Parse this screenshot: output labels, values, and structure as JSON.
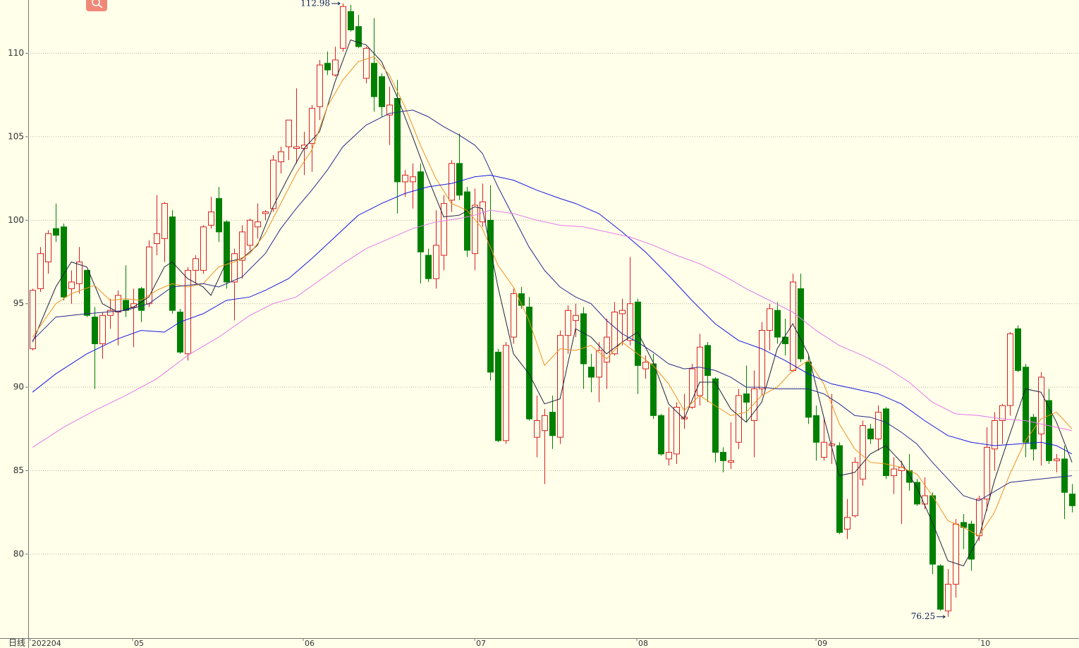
{
  "chart_data": {
    "type": "candlestick",
    "period_label": "日线",
    "xlim": [
      -0.55,
      134.9
    ],
    "xticks": [
      {
        "value": -0.3,
        "label": "202204"
      },
      {
        "value": 12.9,
        "label": "05"
      },
      {
        "value": 34.9,
        "label": "06"
      },
      {
        "value": 57.0,
        "label": "07"
      },
      {
        "value": 77.9,
        "label": "08"
      },
      {
        "value": 101.0,
        "label": "09"
      },
      {
        "value": 122.0,
        "label": "10"
      }
    ],
    "ylim": [
      74.97,
      113.19
    ],
    "yticks": [
      80,
      85,
      90,
      95,
      100,
      105,
      110
    ],
    "grid": true,
    "up_color": "#d82020",
    "down_color": "#008000",
    "open": [
      92.3,
      95.9,
      97.5,
      99.5,
      99.6,
      95.9,
      96.2,
      97.0,
      94.2,
      92.6,
      94.3,
      94.5,
      95.2,
      94.8,
      95.9,
      95.0,
      98.6,
      98.9,
      100.2,
      94.5,
      92.0,
      97.0,
      97.0,
      99.7,
      101.3,
      99.9,
      96.3,
      97.6,
      98.5,
      99.6,
      100.4,
      100.7,
      103.5,
      104.4,
      104.3,
      104.3,
      104.6,
      106.8,
      109.4,
      108.7,
      110.3,
      112.5,
      111.6,
      108.5,
      109.4,
      108.6,
      106.3,
      107.3,
      102.3,
      102.3,
      102.9,
      97.9,
      96.5,
      97.9,
      101.2,
      103.4,
      101.7,
      98.0,
      99.9,
      100.0,
      92.1,
      86.8,
      93.0,
      95.6,
      94.8,
      87.0,
      87.4,
      88.5,
      87.0,
      93.1,
      94.0,
      94.4,
      91.2,
      90.6,
      91.5,
      92.0,
      94.4,
      92.8,
      95.1,
      91.1,
      91.4,
      88.3,
      85.7,
      86.0,
      88.1,
      88.8,
      89.5,
      92.5,
      90.5,
      86.1,
      85.5,
      86.7,
      89.6,
      88.0,
      89.9,
      93.4,
      94.6,
      93.0,
      91.0,
      95.9,
      91.5,
      88.3,
      85.8,
      86.5,
      86.5,
      81.5,
      82.3,
      84.5,
      87.5,
      86.9,
      88.7,
      84.7,
      85.0,
      85.0,
      84.3,
      83.0,
      83.5,
      79.3,
      76.6,
      78.2,
      81.9,
      81.8,
      81.1,
      83.3,
      86.3,
      88.0,
      88.9,
      93.5,
      91.2,
      88.2,
      87.2,
      89.2,
      85.6,
      85.7,
      83.6
    ],
    "high": [
      95.9,
      98.4,
      99.4,
      101.0,
      99.8,
      97.0,
      98.4,
      97.0,
      94.8,
      94.5,
      95.3,
      95.8,
      97.3,
      95.9,
      96.0,
      98.8,
      101.5,
      101.1,
      100.6,
      94.7,
      97.2,
      97.9,
      99.7,
      101.4,
      102.0,
      100.0,
      98.3,
      99.7,
      100.1,
      101.0,
      100.6,
      103.9,
      104.4,
      106.0,
      107.9,
      105.3,
      106.9,
      109.6,
      110.1,
      110.4,
      112.98,
      112.9,
      112.3,
      110.4,
      112.1,
      108.8,
      108.0,
      108.4,
      103.0,
      103.4,
      103.4,
      98.3,
      100.6,
      101.5,
      103.6,
      105.2,
      102.0,
      101.9,
      102.2,
      102.1,
      92.3,
      92.7,
      95.9,
      96.0,
      95.4,
      89.5,
      88.7,
      89.5,
      93.4,
      94.9,
      95.0,
      94.8,
      92.0,
      92.7,
      94.1,
      95.1,
      95.3,
      97.8,
      95.3,
      91.9,
      92.0,
      88.4,
      88.8,
      89.1,
      89.6,
      91.4,
      93.2,
      92.7,
      90.6,
      86.4,
      87.9,
      89.9,
      91.3,
      91.0,
      93.9,
      95.0,
      95.1,
      94.1,
      96.8,
      96.8,
      91.9,
      88.9,
      88.2,
      89.6,
      86.7,
      83.3,
      85.8,
      88.0,
      87.8,
      88.9,
      88.8,
      85.8,
      85.6,
      86.0,
      84.5,
      84.6,
      83.7,
      79.4,
      79.1,
      82.1,
      82.4,
      82.0,
      83.5,
      87.6,
      88.5,
      89.0,
      93.3,
      93.7,
      91.4,
      88.4,
      90.9,
      89.9,
      86.0,
      86.5,
      84.2
    ],
    "low": [
      92.2,
      95.7,
      96.8,
      98.7,
      95.2,
      95.0,
      95.6,
      94.2,
      89.9,
      91.7,
      93.5,
      92.5,
      94.2,
      92.4,
      93.9,
      94.8,
      97.9,
      97.5,
      94.4,
      92.0,
      91.6,
      96.2,
      96.8,
      99.5,
      98.7,
      95.9,
      94.0,
      96.5,
      98.2,
      98.9,
      100.0,
      100.5,
      102.8,
      103.6,
      103.4,
      102.7,
      102.9,
      106.0,
      108.7,
      108.6,
      110.1,
      111.3,
      110.3,
      108.2,
      106.5,
      106.2,
      104.5,
      100.4,
      101.4,
      100.7,
      96.2,
      96.3,
      95.9,
      97.0,
      100.5,
      101.2,
      97.8,
      97.0,
      99.6,
      90.4,
      86.7,
      86.6,
      92.6,
      94.7,
      88.0,
      85.8,
      84.2,
      86.3,
      86.6,
      92.0,
      93.0,
      89.9,
      89.7,
      89.1,
      89.9,
      91.9,
      92.5,
      92.5,
      89.6,
      90.5,
      88.1,
      85.9,
      85.3,
      85.4,
      87.5,
      88.7,
      88.9,
      89.1,
      85.5,
      84.9,
      85.1,
      86.3,
      87.9,
      85.8,
      89.5,
      92.2,
      92.6,
      91.9,
      90.9,
      91.5,
      87.8,
      85.6,
      85.6,
      85.4,
      81.2,
      80.9,
      82.2,
      84.1,
      86.6,
      86.2,
      84.5,
      83.6,
      81.8,
      83.8,
      82.9,
      82.7,
      78.8,
      76.6,
      76.25,
      77.4,
      80.3,
      79.0,
      80.8,
      82.6,
      85.0,
      86.6,
      88.3,
      90.9,
      85.8,
      85.6,
      85.3,
      85.4,
      84.9,
      82.1,
      82.5
    ],
    "close": [
      95.8,
      98.0,
      99.2,
      99.1,
      95.4,
      96.3,
      97.5,
      94.3,
      92.6,
      94.3,
      94.6,
      95.5,
      94.6,
      95.0,
      94.6,
      98.4,
      99.2,
      101.0,
      94.6,
      92.1,
      97.0,
      97.7,
      99.6,
      100.5,
      99.3,
      96.3,
      98.0,
      99.3,
      100.0,
      99.9,
      100.5,
      103.6,
      104.1,
      106.0,
      104.4,
      104.5,
      106.7,
      109.3,
      109.0,
      109.6,
      112.8,
      111.4,
      110.4,
      110.3,
      107.4,
      106.8,
      106.9,
      102.3,
      102.7,
      102.6,
      98.1,
      96.5,
      98.5,
      101.0,
      103.4,
      101.5,
      98.2,
      100.9,
      101.1,
      90.9,
      86.8,
      92.5,
      95.6,
      94.9,
      88.1,
      88.0,
      88.3,
      87.1,
      93.1,
      94.6,
      94.3,
      91.4,
      90.6,
      92.2,
      93.0,
      94.5,
      94.6,
      95.0,
      91.3,
      91.5,
      88.3,
      86.0,
      86.1,
      88.8,
      88.2,
      91.1,
      92.4,
      90.7,
      86.1,
      85.6,
      85.6,
      89.5,
      89.1,
      89.9,
      93.4,
      94.7,
      93.0,
      92.6,
      96.3,
      91.7,
      88.2,
      86.7,
      86.7,
      86.6,
      81.3,
      82.2,
      85.5,
      87.7,
      86.9,
      88.5,
      84.7,
      85.1,
      85.2,
      84.3,
      83.0,
      83.5,
      79.4,
      76.7,
      78.2,
      81.8,
      81.6,
      79.7,
      83.3,
      86.4,
      88.0,
      88.9,
      93.2,
      91.0,
      86.7,
      86.3,
      90.6,
      85.6,
      85.7,
      83.7,
      82.9
    ],
    "lines": [
      {
        "color": "#202040",
        "x": [
          0,
          3,
          5,
          7,
          9,
          11,
          13,
          15,
          17,
          18,
          20,
          22,
          23,
          25,
          27,
          29,
          31,
          33,
          35,
          37,
          39,
          41,
          43,
          45,
          47,
          49,
          51,
          53,
          55,
          57,
          58,
          60,
          62,
          64,
          66,
          68,
          70,
          72,
          74,
          76,
          78,
          80,
          82,
          84,
          86,
          88,
          90,
          92,
          94,
          96,
          98,
          100,
          102,
          104,
          106,
          108,
          110,
          112,
          114,
          116,
          118,
          120,
          122,
          124,
          126,
          128,
          130,
          132,
          134
        ],
        "values": [
          92.7,
          96.0,
          97.5,
          97.2,
          95.0,
          94.5,
          94.8,
          95.4,
          97.2,
          97.5,
          96.5,
          96.0,
          95.5,
          97.5,
          97.7,
          98.5,
          100.8,
          102.6,
          104.3,
          105.3,
          108.3,
          110.8,
          110.5,
          109.5,
          107.4,
          105.0,
          102.5,
          100.2,
          100.3,
          100.8,
          100.7,
          96.0,
          92.0,
          90.8,
          89.0,
          89.3,
          93.5,
          93.0,
          92.0,
          92.7,
          93.3,
          91.5,
          89.0,
          88.1,
          90.3,
          90.3,
          88.7,
          87.9,
          89.1,
          92.3,
          93.8,
          92.0,
          88.2,
          84.7,
          84.9,
          86.0,
          86.5,
          85.5,
          84.0,
          81.9,
          79.6,
          79.3,
          81.0,
          84.4,
          87.2,
          89.9,
          89.7,
          87.9,
          85.5
        ]
      },
      {
        "color": "#f09020",
        "x": [
          0,
          3,
          5,
          8,
          10,
          12,
          14,
          16,
          18,
          20,
          22,
          24,
          26,
          28,
          30,
          32,
          34,
          36,
          38,
          40,
          42,
          44,
          46,
          48,
          50,
          52,
          54,
          56,
          58,
          60,
          62,
          64,
          66,
          68,
          70,
          72,
          74,
          76,
          78,
          80,
          82,
          84,
          86,
          88,
          90,
          92,
          94,
          96,
          98,
          100,
          102,
          104,
          106,
          108,
          110,
          112,
          114,
          116,
          118,
          120,
          122,
          124,
          126,
          128,
          130,
          132,
          134
        ],
        "values": [
          93.0,
          95.0,
          95.6,
          96.1,
          95.2,
          95.3,
          95.2,
          95.8,
          96.2,
          96.0,
          96.2,
          97.2,
          97.5,
          98.0,
          99.2,
          101.0,
          102.8,
          104.2,
          106.8,
          108.4,
          109.5,
          109.8,
          108.7,
          106.8,
          104.5,
          102.5,
          101.0,
          100.6,
          99.5,
          97.3,
          96.0,
          94.0,
          91.3,
          92.3,
          92.2,
          92.5,
          91.7,
          92.7,
          92.0,
          91.3,
          90.2,
          88.6,
          89.5,
          88.9,
          88.3,
          88.5,
          89.5,
          90.0,
          91.0,
          91.6,
          90.2,
          87.8,
          86.3,
          85.5,
          85.4,
          85.2,
          84.8,
          83.5,
          82.0,
          81.6,
          81.1,
          82.5,
          84.8,
          86.8,
          88.1,
          88.5,
          87.5
        ]
      },
      {
        "color": "#2a2a8a",
        "x": [
          0,
          3,
          7,
          12,
          15,
          18,
          22,
          24,
          27,
          30,
          32,
          34,
          36,
          38,
          40,
          43,
          46,
          49,
          51,
          53,
          55,
          57,
          58,
          60,
          62,
          64,
          66,
          68,
          70,
          72,
          74,
          76,
          78,
          80,
          82,
          84,
          86,
          88,
          90,
          92,
          94,
          96,
          98,
          100,
          102,
          104,
          106,
          108,
          110,
          112,
          114,
          116,
          118,
          120,
          122,
          126,
          130,
          134
        ],
        "values": [
          92.8,
          94.2,
          94.4,
          94.6,
          95.0,
          96.0,
          96.2,
          96.0,
          96.6,
          98.0,
          99.5,
          100.7,
          101.8,
          103.0,
          104.4,
          105.7,
          106.4,
          106.6,
          106.2,
          105.6,
          105.1,
          104.5,
          104.0,
          102.0,
          100.2,
          98.4,
          97.0,
          96.0,
          95.4,
          95.0,
          94.0,
          93.2,
          92.7,
          92.1,
          91.4,
          91.1,
          91.2,
          91.0,
          90.6,
          90.0,
          90.0,
          89.9,
          89.9,
          89.9,
          89.6,
          89.0,
          88.3,
          88.2,
          87.9,
          87.3,
          86.6,
          85.5,
          84.5,
          83.5,
          83.2,
          84.3,
          84.5,
          84.7
        ]
      },
      {
        "color": "#1818e0",
        "x": [
          0,
          3,
          7,
          11,
          14,
          17,
          19,
          22,
          25,
          28,
          30,
          33,
          36,
          39,
          42,
          45,
          48,
          51,
          54,
          57,
          59,
          62,
          65,
          68,
          70,
          73,
          76,
          79,
          82,
          85,
          88,
          91,
          94,
          97,
          100,
          103,
          106,
          109,
          112,
          115,
          118,
          121,
          124,
          127,
          130,
          132,
          134
        ],
        "values": [
          89.7,
          90.8,
          92.0,
          92.9,
          93.4,
          93.3,
          93.9,
          94.4,
          95.2,
          95.4,
          95.8,
          96.5,
          97.7,
          99.0,
          100.3,
          101.0,
          101.6,
          102.0,
          102.2,
          102.6,
          102.7,
          102.4,
          101.8,
          101.3,
          101.0,
          100.4,
          99.3,
          98.1,
          96.7,
          95.2,
          93.8,
          92.8,
          92.3,
          91.6,
          90.8,
          90.2,
          89.9,
          89.6,
          89.0,
          88.0,
          87.1,
          86.7,
          86.5,
          86.6,
          86.7,
          86.5,
          86.0
        ]
      },
      {
        "color": "#e478e8",
        "x": [
          0,
          4,
          8,
          12,
          16,
          20,
          24,
          28,
          31,
          34,
          37,
          40,
          43,
          46,
          49,
          52,
          55,
          57,
          59,
          62,
          65,
          68,
          71,
          74,
          77,
          80,
          83,
          86,
          89,
          92,
          95,
          98,
          101,
          104,
          107,
          110,
          113,
          116,
          119,
          122,
          125,
          128,
          131,
          134
        ],
        "values": [
          86.4,
          87.6,
          88.6,
          89.5,
          90.5,
          91.9,
          93.0,
          94.3,
          95.0,
          95.4,
          96.4,
          97.4,
          98.3,
          98.9,
          99.5,
          99.9,
          100.1,
          100.3,
          100.6,
          100.4,
          100.0,
          99.7,
          99.6,
          99.3,
          99.0,
          98.5,
          97.9,
          97.4,
          96.7,
          95.9,
          95.2,
          94.5,
          93.4,
          92.5,
          91.9,
          91.2,
          90.3,
          89.1,
          88.4,
          88.3,
          88.1,
          88.0,
          87.7,
          87.4
        ]
      }
    ],
    "annotations": [
      {
        "x": 40,
        "value": 112.98
      },
      {
        "x": 118,
        "value": 76.25
      }
    ]
  }
}
